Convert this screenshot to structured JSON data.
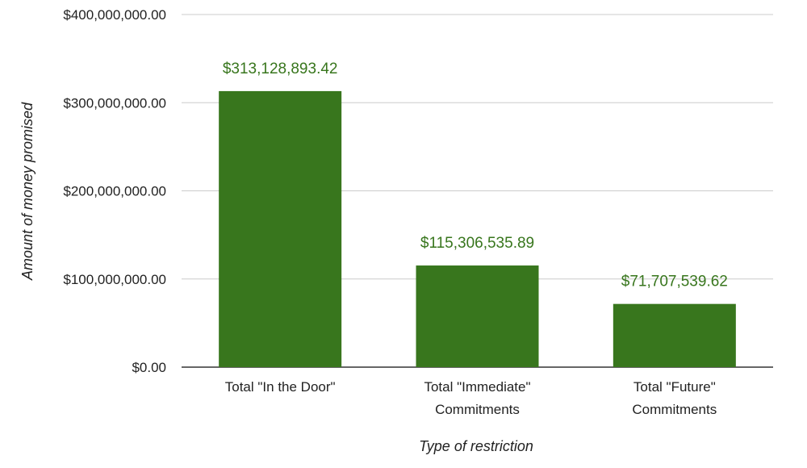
{
  "chart_data": {
    "type": "bar",
    "title": "",
    "xlabel": "Type of restriction",
    "ylabel": "Amount of money promised",
    "categories": [
      [
        "Total \"In the Door\""
      ],
      [
        "Total \"Immediate\"",
        "Commitments"
      ],
      [
        "Total \"Future\"",
        "Commitments"
      ]
    ],
    "values": [
      313128893.42,
      115306535.89,
      71707539.62
    ],
    "data_labels": [
      "$313,128,893.42",
      "$115,306,535.89",
      "$71,707,539.62"
    ],
    "ylim": [
      0,
      400000000
    ],
    "yticks": [
      0,
      100000000,
      200000000,
      300000000,
      400000000
    ],
    "ytick_labels": [
      "$0.00",
      "$100,000,000.00",
      "$200,000,000.00",
      "$300,000,000.00",
      "$400,000,000.00"
    ],
    "grid": true,
    "legend": "none",
    "colors": {
      "bar": "#38761d",
      "data_label": "#38761d",
      "grid": "#cccccc",
      "axis": "#333333"
    }
  }
}
